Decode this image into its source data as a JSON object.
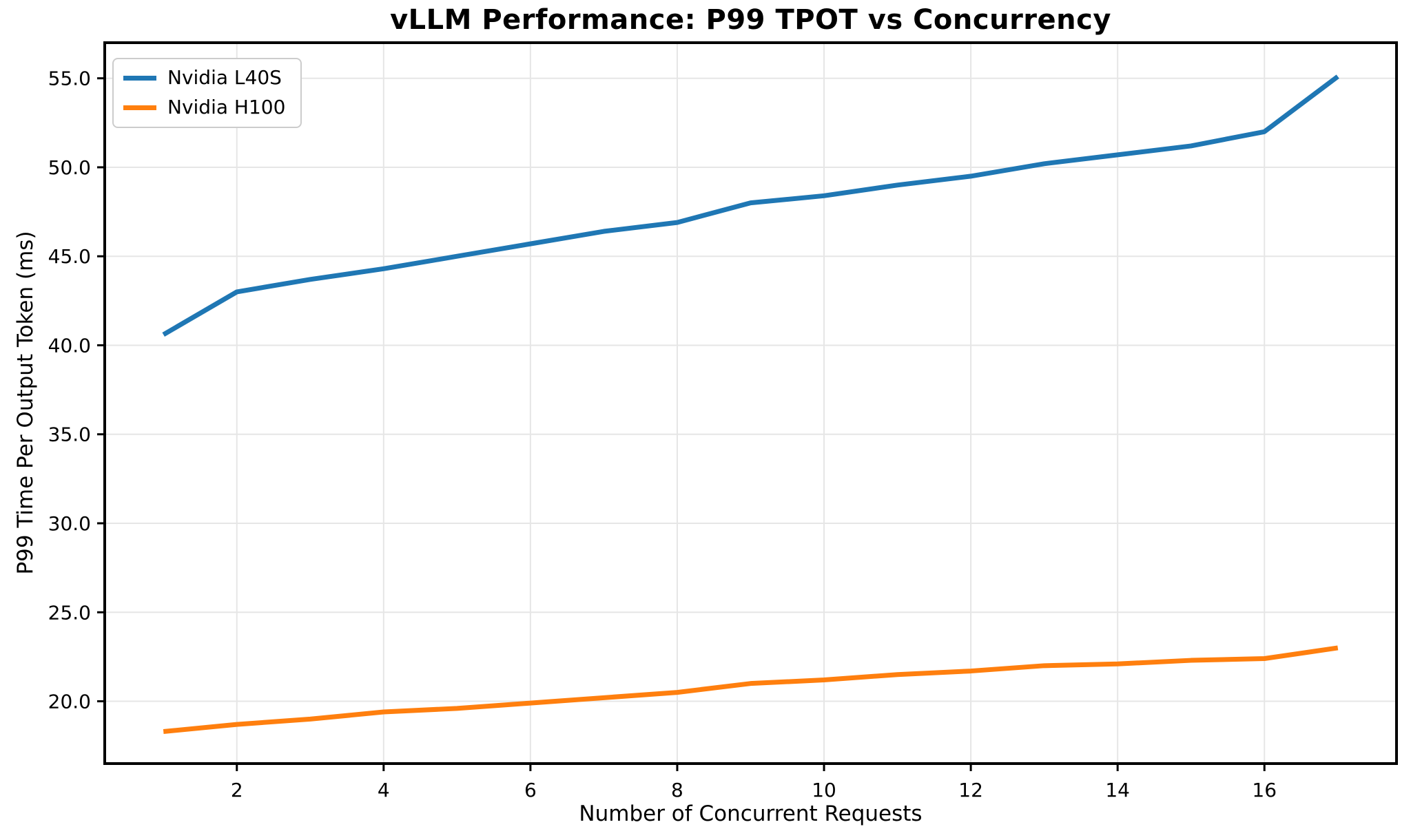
{
  "chart_data": {
    "type": "line",
    "title": "vLLM Performance: P99 TPOT vs Concurrency",
    "xlabel": "Number of Concurrent Requests",
    "ylabel": "P99 Time Per Output Token (ms)",
    "x": [
      1,
      2,
      3,
      4,
      5,
      6,
      7,
      8,
      9,
      10,
      11,
      12,
      13,
      14,
      15,
      16,
      17
    ],
    "series": [
      {
        "name": "Nvidia L40S",
        "color": "#1f77b4",
        "values": [
          40.6,
          43.0,
          43.7,
          44.3,
          45.0,
          45.7,
          46.4,
          46.9,
          48.0,
          48.4,
          49.0,
          49.5,
          50.2,
          50.7,
          51.2,
          52.0,
          55.1
        ]
      },
      {
        "name": "Nvidia H100",
        "color": "#ff7f0e",
        "values": [
          18.3,
          18.7,
          19.0,
          19.4,
          19.6,
          19.9,
          20.2,
          20.5,
          21.0,
          21.2,
          21.5,
          21.7,
          22.0,
          22.1,
          22.3,
          22.4,
          23.0
        ]
      }
    ],
    "xlim": [
      0.2,
      17.8
    ],
    "ylim": [
      16.5,
      57.0
    ],
    "xticks": {
      "values": [
        2,
        4,
        6,
        8,
        10,
        12,
        14,
        16
      ],
      "labels": [
        "2",
        "4",
        "6",
        "8",
        "10",
        "12",
        "14",
        "16"
      ]
    },
    "yticks": {
      "values": [
        20,
        25,
        30,
        35,
        40,
        45,
        50,
        55
      ],
      "labels": [
        "20.0",
        "25.0",
        "30.0",
        "35.0",
        "40.0",
        "45.0",
        "50.0",
        "55.0"
      ]
    },
    "grid": true,
    "legend_position": "upper-left",
    "colors": {
      "background": "#ffffff",
      "grid": "#e6e6e6",
      "axis": "#000000",
      "text": "#000000"
    }
  }
}
